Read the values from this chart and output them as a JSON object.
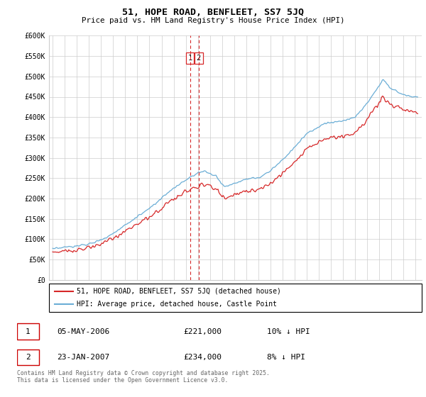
{
  "title": "51, HOPE ROAD, BENFLEET, SS7 5JQ",
  "subtitle": "Price paid vs. HM Land Registry's House Price Index (HPI)",
  "ylabel_ticks": [
    "£0",
    "£50K",
    "£100K",
    "£150K",
    "£200K",
    "£250K",
    "£300K",
    "£350K",
    "£400K",
    "£450K",
    "£500K",
    "£550K",
    "£600K"
  ],
  "ytick_values": [
    0,
    50000,
    100000,
    150000,
    200000,
    250000,
    300000,
    350000,
    400000,
    450000,
    500000,
    550000,
    600000
  ],
  "hpi_color": "#6baed6",
  "price_color": "#d62728",
  "vline_color": "#d62728",
  "transaction1_date": "05-MAY-2006",
  "transaction1_price": "£221,000",
  "transaction1_note": "10% ↓ HPI",
  "transaction2_date": "23-JAN-2007",
  "transaction2_price": "£234,000",
  "transaction2_note": "8% ↓ HPI",
  "legend_label1": "51, HOPE ROAD, BENFLEET, SS7 5JQ (detached house)",
  "legend_label2": "HPI: Average price, detached house, Castle Point",
  "footer": "Contains HM Land Registry data © Crown copyright and database right 2025.\nThis data is licensed under the Open Government Licence v3.0.",
  "vline1_x": 2006.35,
  "vline2_x": 2007.07,
  "xmin": 1994.7,
  "xmax": 2025.5,
  "ymin": 0,
  "ymax": 600000,
  "grid_color": "#cccccc",
  "bg_color": "#ffffff"
}
